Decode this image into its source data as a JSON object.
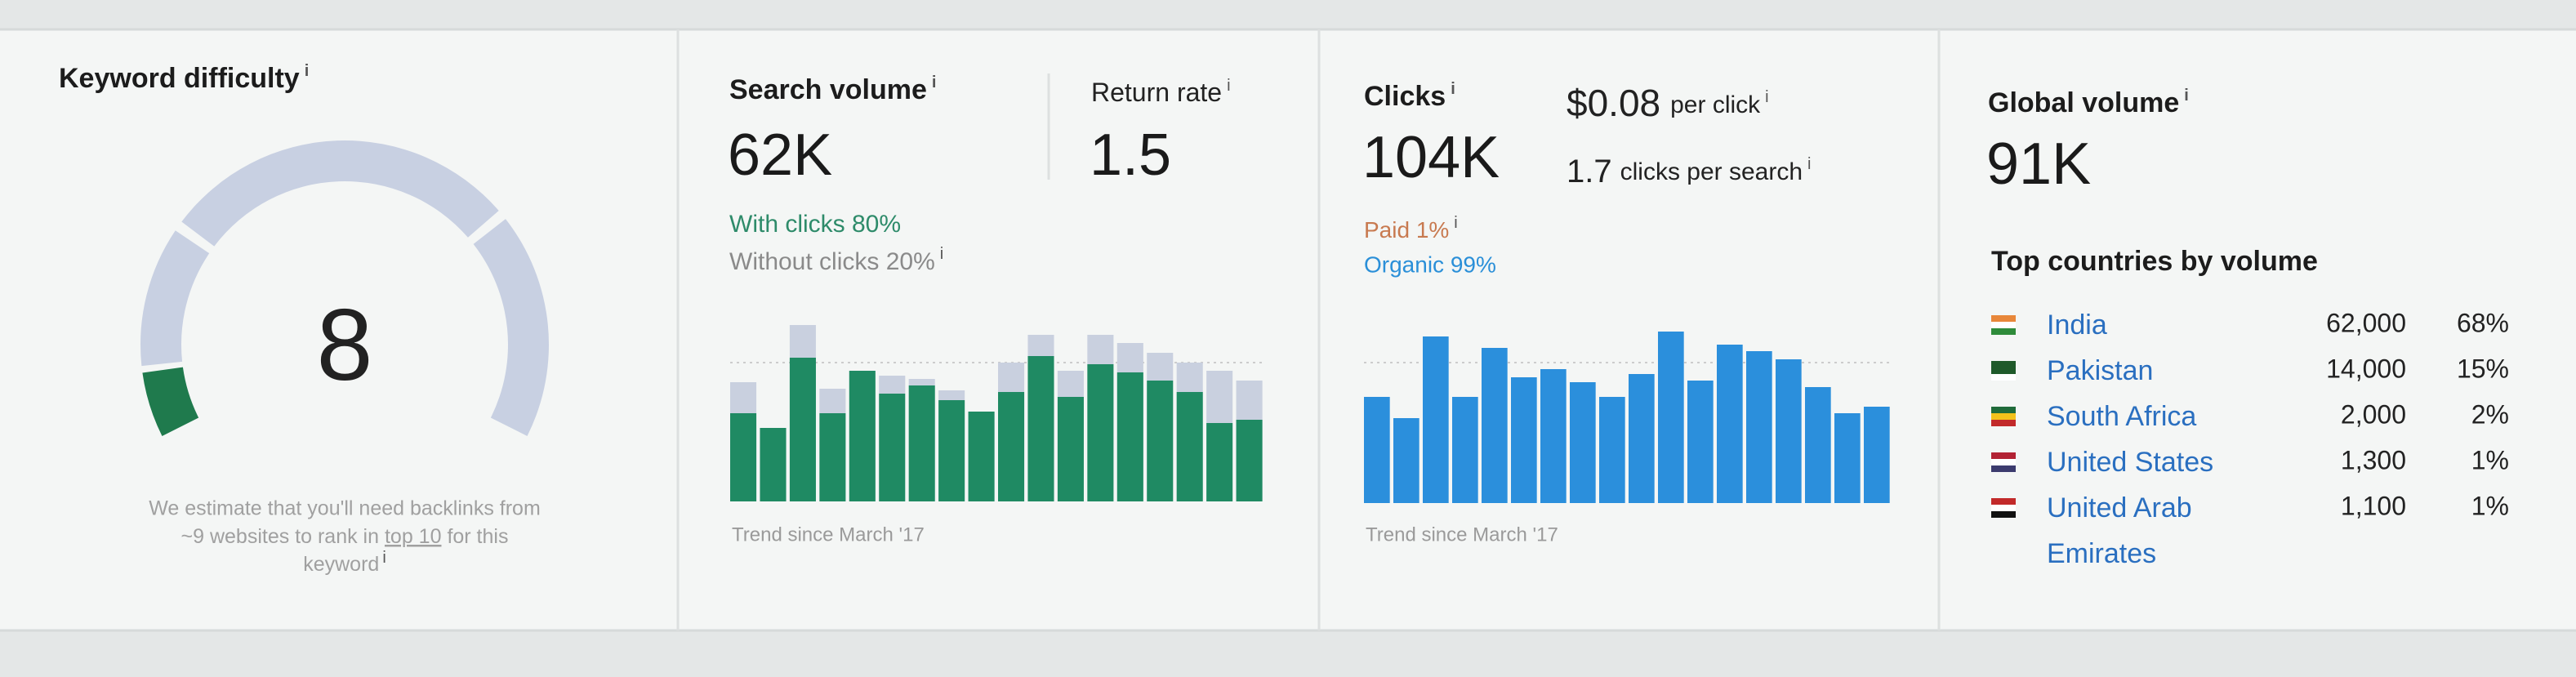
{
  "keyword_difficulty": {
    "title": "Keyword difficulty",
    "info": "i",
    "score": 8,
    "note": [
      "We estimate that you'll need backlinks from",
      "~9 websites to rank in",
      "top 10",
      "for this",
      "keyword"
    ]
  },
  "search_volume": {
    "title": "Search volume",
    "info": "i",
    "value": "62K",
    "return_rate_title": "Return rate",
    "return_rate": "1.5",
    "with_clicks": "With clicks 80%",
    "without_clicks": "Without clicks 20%",
    "trend": {
      "type": "bar",
      "stacked": true,
      "series": [
        {
          "color": "#1f8a63",
          "values": [
            54,
            45,
            88,
            54,
            80,
            66,
            71,
            62,
            55,
            67,
            89,
            64,
            84,
            79,
            74,
            67,
            48,
            50
          ]
        },
        {
          "color": "#c9d0df",
          "values": [
            19,
            0,
            20,
            15,
            0,
            11,
            4,
            6,
            0,
            18,
            13,
            16,
            18,
            18,
            17,
            18,
            32,
            24
          ]
        }
      ]
    },
    "caption": "Trend since March '17"
  },
  "clicks": {
    "title": "Clicks",
    "info": "i",
    "value": "104K",
    "cpc": "$0.08",
    "cpc_label": "per click",
    "cps": "1.7",
    "cps_label": "clicks per search",
    "paid": "Paid 1%",
    "organic": "Organic 99%",
    "trend": {
      "type": "bar",
      "color": "#2b8fdc",
      "values": [
        65,
        52,
        102,
        65,
        95,
        77,
        82,
        74,
        65,
        79,
        105,
        75,
        97,
        93,
        88,
        71,
        55,
        59
      ]
    },
    "caption": "Trend since March '17"
  },
  "global_volume": {
    "title": "Global volume",
    "info": "i",
    "value": "91K",
    "countries_title": "Top countries by volume",
    "countries": [
      [
        "India",
        "62,000",
        "68%"
      ],
      [
        "Pakistan",
        "14,000",
        "15%"
      ],
      [
        "South Africa",
        "2,000",
        "2%"
      ],
      [
        "United States",
        "1,300",
        "1%"
      ],
      [
        "United Arab Emirates",
        "1,100",
        "1%"
      ]
    ]
  }
}
